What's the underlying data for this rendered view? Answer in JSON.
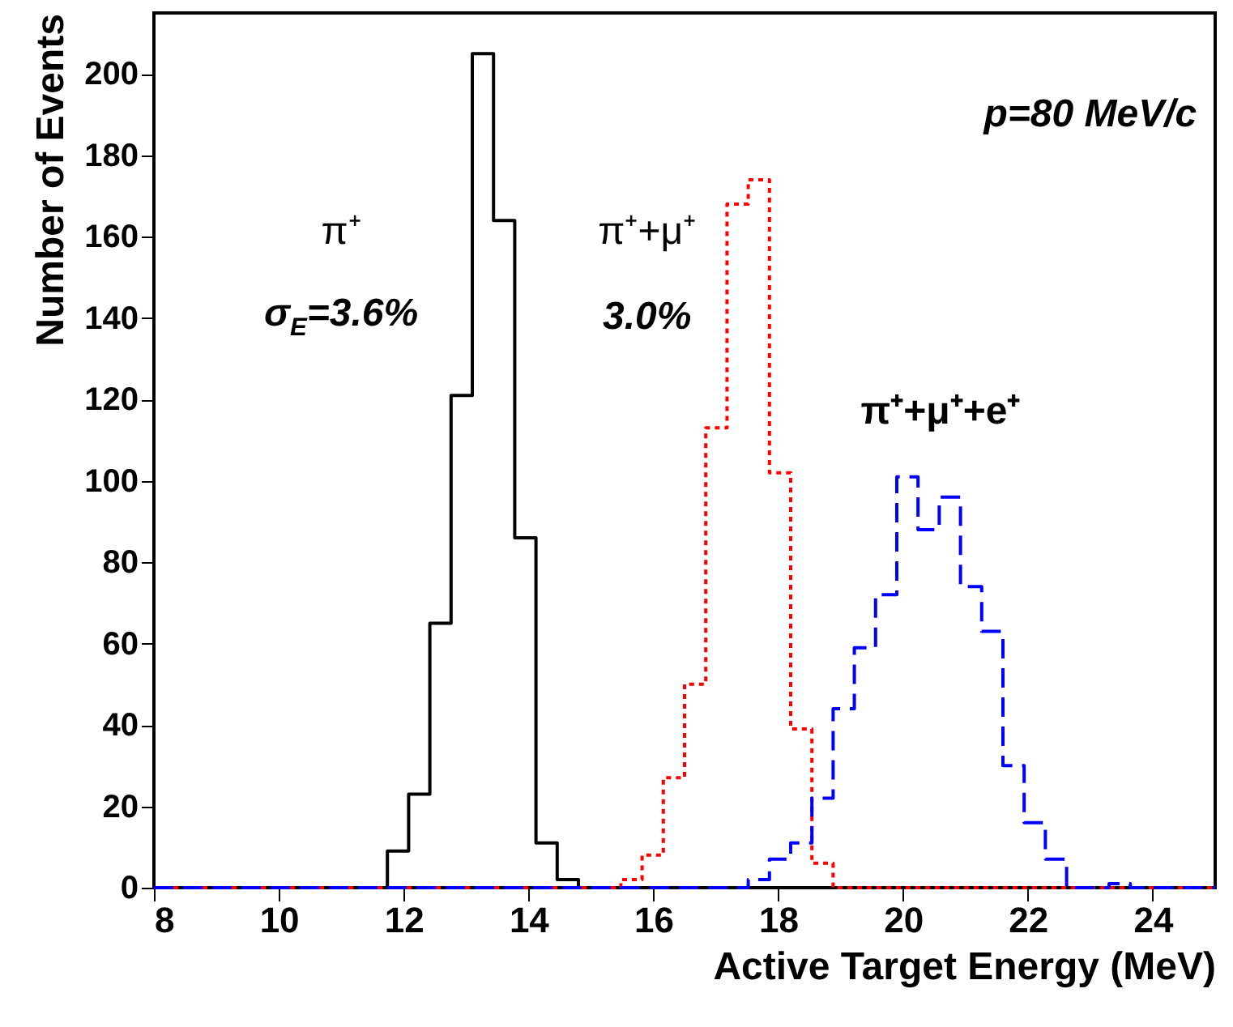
{
  "chart_data": {
    "type": "histogram",
    "xlabel": "Active Target Energy (MeV)",
    "ylabel": "Number of Events",
    "bins": [
      8,
      8.34,
      8.68,
      9.02,
      9.36,
      9.7,
      10.04,
      10.38,
      10.72,
      11.06,
      11.4,
      11.74,
      12.08,
      12.42,
      12.76,
      13.1,
      13.44,
      13.78,
      14.12,
      14.46,
      14.8,
      15.14,
      15.48,
      15.82,
      16.16,
      16.5,
      16.84,
      17.18,
      17.52,
      17.86,
      18.2,
      18.54,
      18.88,
      19.22,
      19.56,
      19.9,
      20.24,
      20.58,
      20.92,
      21.26,
      21.6,
      21.94,
      22.28,
      22.62,
      22.96,
      23.3,
      23.64,
      23.98,
      24.32,
      24.66,
      25
    ],
    "series": [
      {
        "name": "π⁺",
        "color": "#000000",
        "line_style": "solid",
        "values": [
          0,
          0,
          0,
          0,
          0,
          0,
          0,
          0,
          0,
          0,
          0,
          9,
          23,
          65,
          121,
          205,
          164,
          86,
          11,
          2,
          0,
          0,
          0,
          0,
          0,
          0,
          0,
          0,
          0,
          0,
          0,
          0,
          0,
          0,
          0,
          0,
          0,
          0,
          0,
          0,
          0,
          0,
          0,
          0,
          0,
          0,
          0,
          0,
          0,
          0
        ]
      },
      {
        "name": "π⁺+μ⁺",
        "color": "#ff0000",
        "line_style": "dotted",
        "values": [
          0,
          0,
          0,
          0,
          0,
          0,
          0,
          0,
          0,
          0,
          0,
          0,
          0,
          0,
          0,
          0,
          0,
          0,
          0,
          0,
          0,
          0,
          2,
          8,
          27,
          50,
          113,
          168,
          174,
          102,
          39,
          6,
          0,
          0,
          0,
          0,
          0,
          0,
          0,
          0,
          0,
          0,
          0,
          0,
          0,
          0,
          0,
          0,
          0,
          0
        ]
      },
      {
        "name": "π⁺+μ⁺+e⁺",
        "color": "#0000ff",
        "line_style": "dashed",
        "values": [
          0,
          0,
          0,
          0,
          0,
          0,
          0,
          0,
          0,
          0,
          0,
          0,
          0,
          0,
          0,
          0,
          0,
          0,
          0,
          0,
          0,
          0,
          0,
          0,
          0,
          0,
          0,
          0,
          2,
          7,
          11,
          22,
          44,
          59,
          72,
          101,
          88,
          96,
          74,
          63,
          30,
          16,
          7,
          0,
          0,
          1,
          0,
          0,
          0,
          0
        ]
      }
    ],
    "annotations": [
      "σ$_{E}$=3.6%",
      "3.0%",
      "p=80 MeV/c"
    ],
    "xlim": [
      8,
      25
    ],
    "xticks": [
      8,
      10,
      12,
      14,
      16,
      18,
      20,
      22,
      24
    ],
    "ylim": [
      0,
      215
    ],
    "yticks": [
      0,
      20,
      40,
      60,
      80,
      100,
      120,
      140,
      160,
      180,
      200
    ],
    "grid": false
  }
}
